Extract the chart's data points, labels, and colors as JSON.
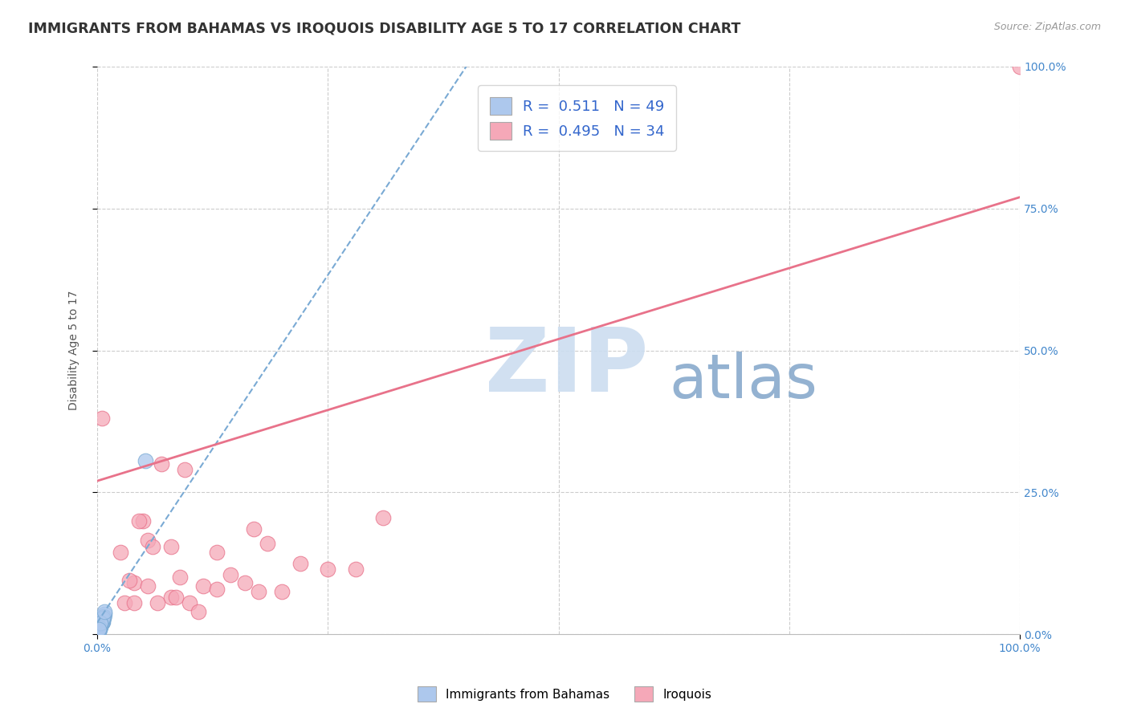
{
  "title": "IMMIGRANTS FROM BAHAMAS VS IROQUOIS DISABILITY AGE 5 TO 17 CORRELATION CHART",
  "source": "Source: ZipAtlas.com",
  "ylabel": "Disability Age 5 to 17",
  "xlim": [
    0,
    1.0
  ],
  "ylim": [
    0,
    1.0
  ],
  "ytick_positions": [
    0,
    0.25,
    0.5,
    0.75,
    1.0
  ],
  "ytick_labels": [
    "0.0%",
    "25.0%",
    "50.0%",
    "75.0%",
    "100.0%"
  ],
  "xtick_positions": [
    0,
    1.0
  ],
  "xtick_labels": [
    "0.0%",
    "100.0%"
  ],
  "legend_blue_label": "R =  0.511   N = 49",
  "legend_pink_label": "R =  0.495   N = 34",
  "series1_color": "#adc8ed",
  "series2_color": "#f5a8b8",
  "trendline1_color": "#7aaad4",
  "trendline2_color": "#e8728a",
  "watermark_zip": "ZIP",
  "watermark_atlas": "atlas",
  "watermark_color_zip": "#ccddf0",
  "watermark_color_atlas": "#88aacc",
  "grid_color": "#cccccc",
  "background_color": "#ffffff",
  "title_color": "#333333",
  "axis_label_color": "#555555",
  "tick_label_color": "#4488cc",
  "blue_scatter_x": [
    0.004,
    0.007,
    0.003,
    0.005,
    0.006,
    0.008,
    0.003,
    0.006,
    0.004,
    0.002,
    0.003,
    0.005,
    0.007,
    0.004,
    0.003,
    0.002,
    0.006,
    0.004,
    0.005,
    0.003,
    0.004,
    0.003,
    0.006,
    0.002,
    0.004,
    0.005,
    0.004,
    0.003,
    0.002,
    0.002,
    0.006,
    0.004,
    0.005,
    0.003,
    0.004,
    0.002,
    0.007,
    0.004,
    0.003,
    0.005,
    0.002,
    0.005,
    0.006,
    0.004,
    0.003,
    0.004,
    0.002,
    0.052,
    0.008
  ],
  "blue_scatter_y": [
    0.02,
    0.03,
    0.015,
    0.025,
    0.022,
    0.035,
    0.01,
    0.028,
    0.018,
    0.008,
    0.012,
    0.02,
    0.03,
    0.018,
    0.01,
    0.006,
    0.025,
    0.015,
    0.022,
    0.01,
    0.018,
    0.012,
    0.025,
    0.008,
    0.016,
    0.022,
    0.018,
    0.012,
    0.008,
    0.005,
    0.028,
    0.018,
    0.022,
    0.012,
    0.018,
    0.008,
    0.032,
    0.018,
    0.012,
    0.022,
    0.008,
    0.025,
    0.028,
    0.018,
    0.012,
    0.02,
    0.008,
    0.305,
    0.04
  ],
  "pink_scatter_x": [
    0.005,
    0.025,
    0.04,
    0.055,
    0.065,
    0.08,
    0.09,
    0.1,
    0.115,
    0.13,
    0.145,
    0.16,
    0.175,
    0.185,
    0.2,
    0.22,
    0.25,
    0.28,
    0.31,
    0.055,
    0.07,
    0.095,
    0.13,
    0.035,
    0.05,
    0.08,
    0.06,
    0.03,
    0.11,
    0.045,
    0.17,
    0.04,
    0.085,
    1.0
  ],
  "pink_scatter_y": [
    0.38,
    0.145,
    0.09,
    0.085,
    0.055,
    0.065,
    0.1,
    0.055,
    0.085,
    0.08,
    0.105,
    0.09,
    0.075,
    0.16,
    0.075,
    0.125,
    0.115,
    0.115,
    0.205,
    0.165,
    0.3,
    0.29,
    0.145,
    0.095,
    0.2,
    0.155,
    0.155,
    0.055,
    0.04,
    0.2,
    0.185,
    0.055,
    0.065,
    1.0
  ],
  "pink_trendline_x0": 0.0,
  "pink_trendline_y0": 0.27,
  "pink_trendline_x1": 1.0,
  "pink_trendline_y1": 0.77,
  "blue_trendline_x0": 0.0,
  "blue_trendline_y0": 0.02,
  "blue_trendline_x1": 0.4,
  "blue_trendline_y1": 1.0
}
